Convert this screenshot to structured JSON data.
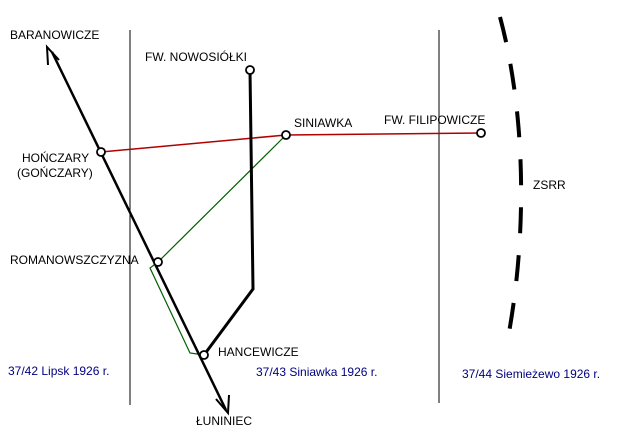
{
  "colors": {
    "background": "#ffffff",
    "main_line": "#000000",
    "red_line": "#b00000",
    "green_line": "#006000",
    "sheet_border": "#000000",
    "frontier": "#000000",
    "sheet_label": "#000080",
    "station_fill": "#ffffff"
  },
  "stations": {
    "baranowicze": "BARANOWICZE",
    "nowosiolki": "FW. NOWOSIÓŁKI",
    "siniawka": "SINIAWKA",
    "filipowicze": "FW. FILIPOWICZE",
    "honczary": "HOŃCZARY",
    "honczary_alt": "(GOŃCZARY)",
    "romanowszczyzna": "ROMANOWSZCZYZNA",
    "hancewicze": "HANCEWICZE",
    "luniniec": "ŁUNINIEC"
  },
  "country": "ZSRR",
  "sheets": {
    "left": "37/42 Lipsk 1926 r.",
    "middle": "37/43 Siniawka 1926 r.",
    "right": "37/44 Siemieżewo 1926 r."
  }
}
